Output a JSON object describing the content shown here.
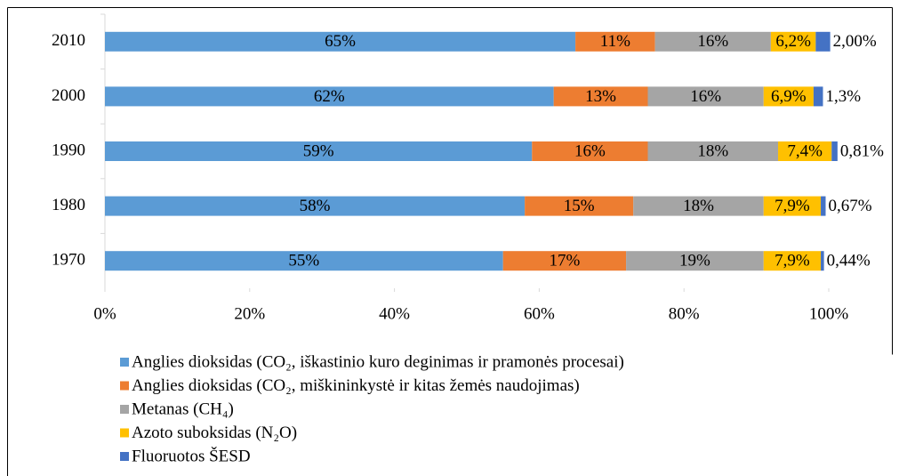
{
  "chart_data": {
    "type": "stacked-bar-horizontal",
    "categories": [
      "2010",
      "2000",
      "1990",
      "1980",
      "1970"
    ],
    "xlim": [
      0,
      100
    ],
    "xticks": [
      {
        "value": 0,
        "label": "0%"
      },
      {
        "value": 20,
        "label": "20%"
      },
      {
        "value": 40,
        "label": "40%"
      },
      {
        "value": 60,
        "label": "60%"
      },
      {
        "value": 80,
        "label": "80%"
      },
      {
        "value": 100,
        "label": "100%"
      }
    ],
    "legend": "bottom",
    "series": [
      {
        "name": "Anglies dioksidas (CO₂, iškastinio kuro deginimas ir pramonės procesai)",
        "color": "#5b9bd5",
        "values": [
          65,
          62,
          59,
          58,
          55
        ],
        "value_labels": [
          "65%",
          "62%",
          "59%",
          "58%",
          "55%"
        ]
      },
      {
        "name": "Anglies dioksidas (CO₂, miškininkystė ir kitas žemės naudojimas)",
        "color": "#ed7d31",
        "values": [
          11,
          13,
          16,
          15,
          17
        ],
        "value_labels": [
          "11%",
          "13%",
          "16%",
          "15%",
          "17%"
        ]
      },
      {
        "name": "Metanas (CH₄)",
        "color": "#a5a5a5",
        "values": [
          16,
          16,
          18,
          18,
          19
        ],
        "value_labels": [
          "16%",
          "16%",
          "18%",
          "18%",
          "19%"
        ]
      },
      {
        "name": "Azoto suboksidas (N₂O)",
        "color": "#ffc000",
        "values": [
          6.2,
          6.9,
          7.4,
          7.9,
          7.9
        ],
        "value_labels": [
          "6,2%",
          "6,9%",
          "7,4%",
          "7,9%",
          "7,9%"
        ]
      },
      {
        "name": "Fluoruotos ŠESD",
        "color": "#4472c4",
        "values": [
          2.0,
          1.3,
          0.81,
          0.67,
          0.44
        ],
        "value_labels": [
          "2,00%",
          "1,3%",
          "0,81%",
          "0,67%",
          "0,44%"
        ]
      }
    ]
  }
}
